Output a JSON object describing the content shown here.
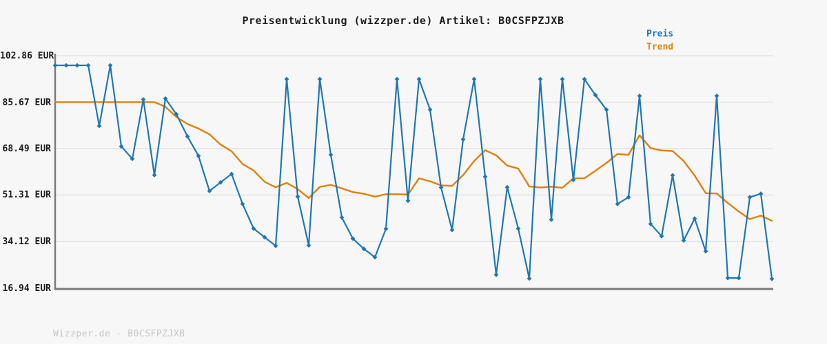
{
  "header": {
    "title": "Preisentwicklung (wizzper.de) Artikel: B0CSFPZJXB"
  },
  "legend": {
    "items": [
      {
        "label": "Preis",
        "color": "#1f77b4"
      },
      {
        "label": "Trend",
        "color": "#d8860f"
      }
    ]
  },
  "y_axis": {
    "labels": [
      "102.86 EUR",
      "85.67 EUR",
      "68.49 EUR",
      "51.31 EUR",
      "34.12 EUR",
      "16.94 EUR"
    ]
  },
  "footer": {
    "text": "Wizzper.de - B0CSFPZJXB"
  },
  "colors": {
    "background": "#f7f7f7",
    "gridline": "#e3e3e3",
    "axis": "#7a7a7a",
    "preis_line": "#1f77b4",
    "trend_line": "#de800d"
  },
  "chart_data": {
    "type": "line",
    "title": "Preisentwicklung (wizzper.de) Artikel: B0CSFPZJXB",
    "xlabel": "",
    "ylabel": "EUR",
    "x_tick_labels": [],
    "y_ticks": [
      102.86,
      85.67,
      68.49,
      51.31,
      34.12,
      16.94
    ],
    "ylim": [
      16.94,
      102.86
    ],
    "grid": "horizontal",
    "legend_position": "top-right",
    "n_points": 66,
    "series": [
      {
        "name": "Preis",
        "color": "#1f77b4",
        "marker": "diamond",
        "values": [
          99.3,
          99.3,
          99.3,
          99.3,
          76.9,
          99.3,
          69.3,
          64.7,
          86.7,
          58.7,
          87.0,
          81.2,
          73.0,
          65.8,
          52.8,
          56.0,
          59.1,
          48.0,
          38.9,
          35.7,
          32.5,
          94.2,
          50.7,
          32.7,
          94.2,
          66.2,
          43.0,
          35.2,
          31.4,
          28.3,
          38.8,
          94.2,
          49.2,
          94.2,
          82.9,
          54.1,
          38.4,
          71.9,
          94.2,
          58.1,
          21.8,
          54.2,
          38.9,
          20.4,
          94.2,
          42.2,
          94.2,
          56.9,
          94.2,
          88.3,
          82.9,
          48.0,
          50.5,
          88.0,
          40.6,
          36.1,
          58.6,
          34.5,
          42.6,
          30.5,
          88.0,
          20.6,
          20.6,
          50.5,
          51.8,
          20.3
        ]
      },
      {
        "name": "Trend",
        "color": "#de800d",
        "marker": "none",
        "values": [
          85.7,
          85.7,
          85.7,
          85.7,
          85.7,
          85.7,
          85.7,
          85.7,
          85.7,
          85.7,
          84.0,
          80.2,
          77.6,
          75.9,
          73.8,
          70.0,
          67.5,
          62.8,
          60.4,
          56.2,
          54.2,
          55.8,
          53.5,
          50.2,
          54.3,
          55.1,
          53.8,
          52.4,
          51.8,
          50.7,
          51.6,
          51.6,
          51.5,
          57.5,
          56.4,
          54.9,
          54.7,
          58.7,
          63.9,
          67.9,
          66.0,
          62.2,
          61.1,
          54.5,
          54.1,
          54.4,
          54.0,
          57.5,
          57.5,
          60.3,
          63.2,
          66.5,
          66.2,
          73.4,
          68.7,
          67.8,
          67.6,
          63.9,
          58.5,
          52.0,
          51.9,
          48.4,
          45.2,
          42.4,
          43.7,
          41.8
        ]
      }
    ]
  }
}
